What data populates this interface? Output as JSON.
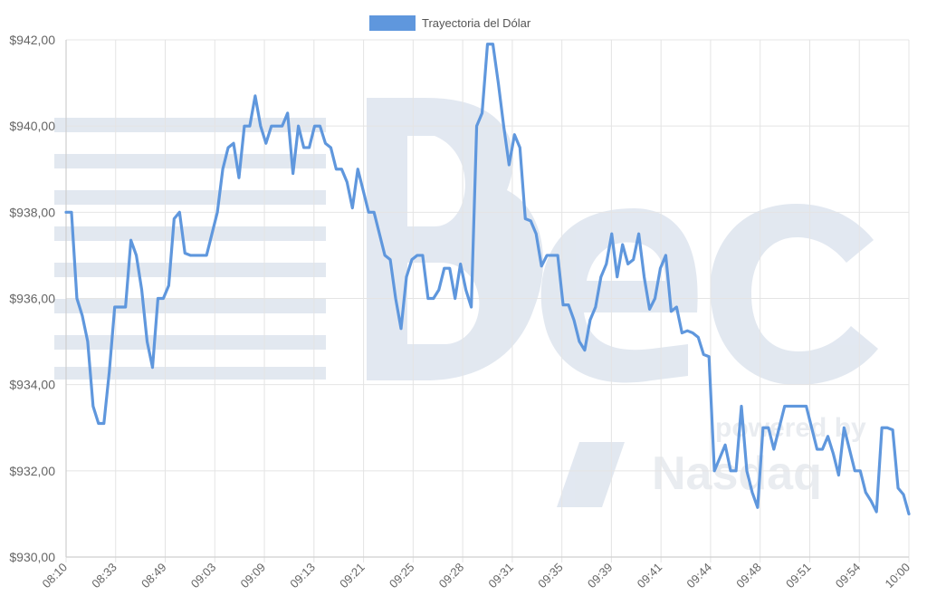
{
  "chart_data": {
    "type": "line",
    "legend": {
      "label": "Trayectoria del Dólar",
      "position": "top-center"
    },
    "series_color": "#5f97dd",
    "ylim": [
      930,
      942
    ],
    "y_ticks": [
      "$930,00",
      "$932,00",
      "$934,00",
      "$936,00",
      "$938,00",
      "$940,00",
      "$942,00"
    ],
    "y_tick_values": [
      930,
      932,
      934,
      936,
      938,
      940,
      942
    ],
    "x_ticks": [
      "08:10",
      "08:33",
      "08:49",
      "09:03",
      "09:09",
      "09:13",
      "09:21",
      "09:25",
      "09:28",
      "09:31",
      "09:35",
      "09:39",
      "09:41",
      "09:44",
      "09:48",
      "09:51",
      "09:54",
      "10:00"
    ],
    "grid": true,
    "values": [
      938.0,
      938.0,
      936.0,
      935.6,
      935.0,
      933.5,
      933.1,
      933.1,
      934.3,
      935.8,
      935.8,
      935.8,
      937.35,
      937.0,
      936.2,
      935.0,
      934.4,
      936.0,
      936.0,
      936.3,
      937.85,
      938.0,
      937.05,
      937.0,
      937.0,
      937.0,
      937.0,
      937.5,
      938.0,
      939.0,
      939.5,
      939.6,
      938.8,
      940.0,
      940.0,
      940.7,
      940.0,
      939.6,
      940.0,
      940.0,
      940.0,
      940.3,
      938.9,
      940.0,
      939.5,
      939.5,
      940.0,
      940.0,
      939.6,
      939.5,
      939.0,
      939.0,
      938.7,
      938.1,
      939.0,
      938.5,
      938.0,
      938.0,
      937.5,
      937.0,
      936.9,
      936.0,
      935.3,
      936.5,
      936.9,
      937.0,
      937.0,
      936.0,
      936.0,
      936.2,
      936.7,
      936.7,
      936.0,
      936.8,
      936.2,
      935.8,
      940.0,
      940.3,
      941.9,
      941.9,
      941.0,
      940.0,
      939.1,
      939.8,
      939.5,
      937.85,
      937.8,
      937.5,
      936.75,
      937.0,
      937.0,
      937.0,
      935.85,
      935.85,
      935.5,
      935.0,
      934.8,
      935.5,
      935.8,
      936.5,
      936.8,
      937.5,
      936.5,
      937.25,
      936.8,
      936.9,
      937.5,
      936.5,
      935.75,
      936.0,
      936.7,
      937.0,
      935.7,
      935.8,
      935.2,
      935.25,
      935.2,
      935.1,
      934.7,
      934.65,
      932.0,
      932.3,
      932.6,
      932.0,
      932.0,
      933.5,
      932.0,
      931.5,
      931.15,
      933.0,
      933.0,
      932.5,
      933.0,
      933.5,
      933.5,
      933.5,
      933.5,
      933.5,
      933.0,
      932.5,
      932.5,
      932.8,
      932.4,
      931.9,
      933.0,
      932.5,
      932.0,
      932.0,
      931.5,
      931.3,
      931.05,
      933.0,
      933.0,
      932.95,
      931.6,
      931.45,
      931.0
    ]
  }
}
